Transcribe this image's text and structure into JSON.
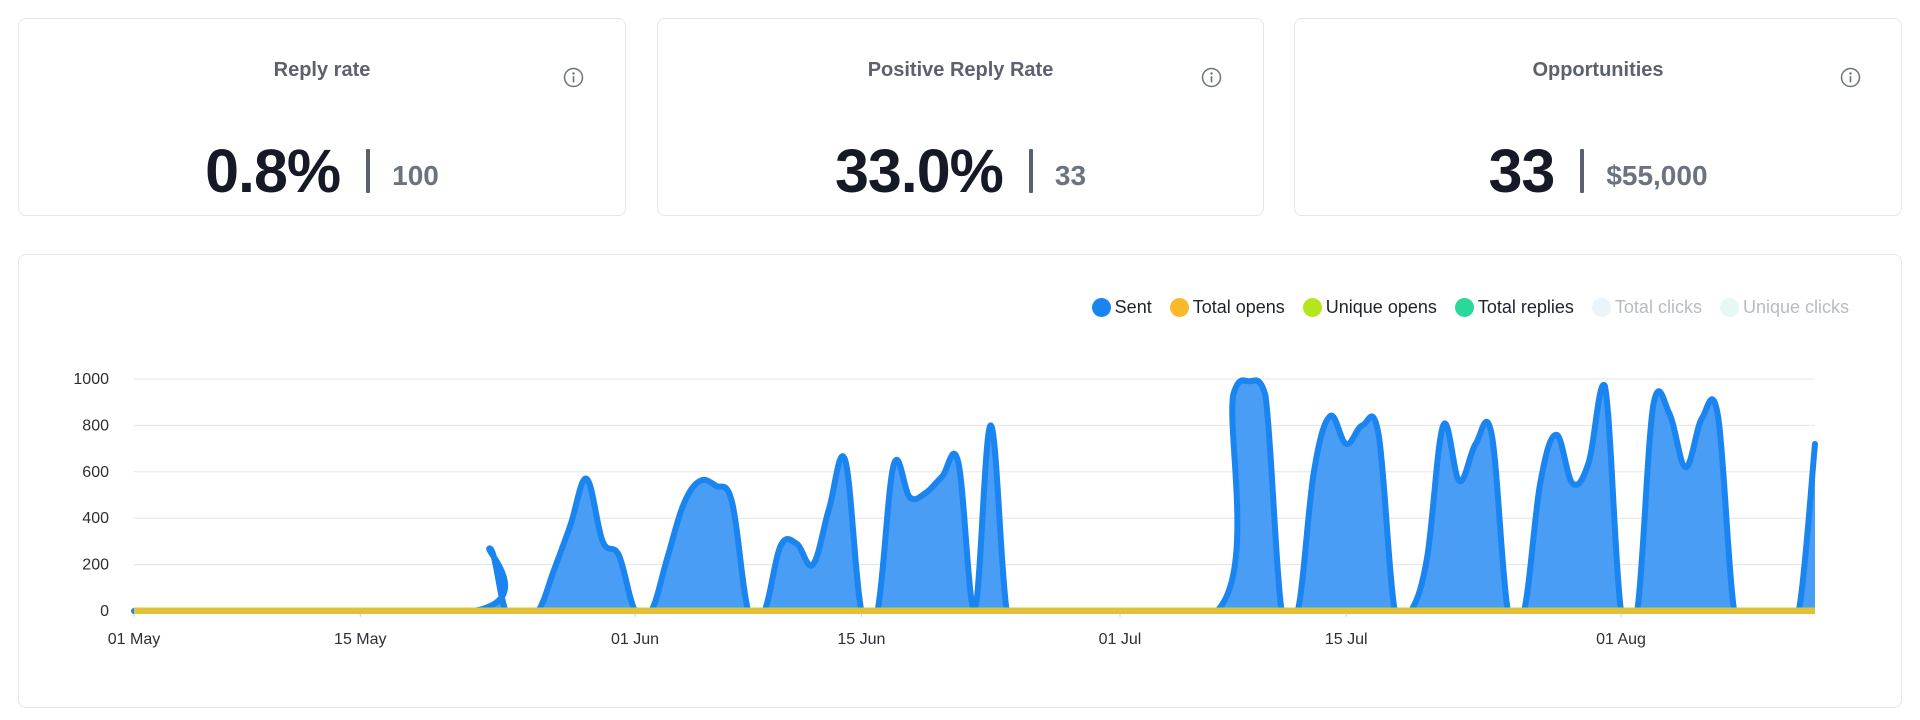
{
  "cards": [
    {
      "title": "Reply rate",
      "value": "0.8%",
      "sub": "100"
    },
    {
      "title": "Positive Reply Rate",
      "value": "33.0%",
      "sub": "33"
    },
    {
      "title": "Opportunities",
      "value": "33",
      "sub": "$55,000"
    }
  ],
  "chart_data": {
    "type": "area",
    "x_type": "date",
    "x_start": "2024-05-01",
    "x_end": "2024-08-13",
    "xlim": [
      "2024-05-01",
      "2024-08-13"
    ],
    "ylim": [
      0,
      1000
    ],
    "y_ticks": [
      "0",
      "200",
      "400",
      "600",
      "800",
      "1000"
    ],
    "x_ticks": [
      {
        "date": "2024-05-01",
        "label": "01 May"
      },
      {
        "date": "2024-05-15",
        "label": "15 May"
      },
      {
        "date": "2024-06-01",
        "label": "01 Jun"
      },
      {
        "date": "2024-06-15",
        "label": "15 Jun"
      },
      {
        "date": "2024-07-01",
        "label": "01 Jul"
      },
      {
        "date": "2024-07-15",
        "label": "15 Jul"
      },
      {
        "date": "2024-08-01",
        "label": "01 Aug"
      }
    ],
    "grid": true,
    "legend_position": "top-right",
    "series": [
      {
        "name": "Sent",
        "color": "#1a85f0",
        "fill": "#4a9df5",
        "visible": true,
        "points": [
          [
            "2024-05-01",
            0
          ],
          [
            "2024-05-22",
            0
          ],
          [
            "2024-05-23",
            270
          ],
          [
            "2024-05-24",
            0
          ],
          [
            "2024-05-25",
            0
          ],
          [
            "2024-05-26",
            0
          ],
          [
            "2024-05-27",
            180
          ],
          [
            "2024-05-28",
            370
          ],
          [
            "2024-05-29",
            570
          ],
          [
            "2024-05-30",
            300
          ],
          [
            "2024-05-31",
            240
          ],
          [
            "2024-06-01",
            0
          ],
          [
            "2024-06-02",
            0
          ],
          [
            "2024-06-03",
            230
          ],
          [
            "2024-06-04",
            460
          ],
          [
            "2024-06-05",
            560
          ],
          [
            "2024-06-06",
            540
          ],
          [
            "2024-06-07",
            470
          ],
          [
            "2024-06-08",
            0
          ],
          [
            "2024-06-09",
            0
          ],
          [
            "2024-06-10",
            280
          ],
          [
            "2024-06-11",
            290
          ],
          [
            "2024-06-12",
            200
          ],
          [
            "2024-06-13",
            440
          ],
          [
            "2024-06-14",
            650
          ],
          [
            "2024-06-15",
            0
          ],
          [
            "2024-06-16",
            0
          ],
          [
            "2024-06-17",
            630
          ],
          [
            "2024-06-18",
            490
          ],
          [
            "2024-06-19",
            510
          ],
          [
            "2024-06-20",
            580
          ],
          [
            "2024-06-21",
            640
          ],
          [
            "2024-06-22",
            0
          ],
          [
            "2024-06-23",
            800
          ],
          [
            "2024-06-24",
            0
          ],
          [
            "2024-06-25",
            0
          ],
          [
            "2024-07-07",
            0
          ],
          [
            "2024-07-08",
            930
          ],
          [
            "2024-07-09",
            990
          ],
          [
            "2024-07-10",
            930
          ],
          [
            "2024-07-11",
            0
          ],
          [
            "2024-07-12",
            0
          ],
          [
            "2024-07-13",
            600
          ],
          [
            "2024-07-14",
            840
          ],
          [
            "2024-07-15",
            720
          ],
          [
            "2024-07-16",
            800
          ],
          [
            "2024-07-17",
            760
          ],
          [
            "2024-07-18",
            0
          ],
          [
            "2024-07-19",
            0
          ],
          [
            "2024-07-20",
            230
          ],
          [
            "2024-07-21",
            800
          ],
          [
            "2024-07-22",
            560
          ],
          [
            "2024-07-23",
            720
          ],
          [
            "2024-07-24",
            760
          ],
          [
            "2024-07-25",
            0
          ],
          [
            "2024-07-26",
            0
          ],
          [
            "2024-07-27",
            550
          ],
          [
            "2024-07-28",
            760
          ],
          [
            "2024-07-29",
            550
          ],
          [
            "2024-07-30",
            640
          ],
          [
            "2024-07-31",
            970
          ],
          [
            "2024-08-01",
            0
          ],
          [
            "2024-08-02",
            0
          ],
          [
            "2024-08-03",
            890
          ],
          [
            "2024-08-04",
            850
          ],
          [
            "2024-08-05",
            620
          ],
          [
            "2024-08-06",
            830
          ],
          [
            "2024-08-07",
            840
          ],
          [
            "2024-08-08",
            0
          ],
          [
            "2024-08-09",
            0
          ],
          [
            "2024-08-10",
            0
          ],
          [
            "2024-08-11",
            0
          ],
          [
            "2024-08-12",
            0
          ],
          [
            "2024-08-13",
            720
          ]
        ]
      },
      {
        "name": "Total opens",
        "color": "#fbb82b",
        "visible": true,
        "values": "zero"
      },
      {
        "name": "Unique opens",
        "color": "#b5e61d",
        "visible": true,
        "values": "zero"
      },
      {
        "name": "Total replies",
        "color": "#2ad89a",
        "visible": true,
        "values": "zero"
      },
      {
        "name": "Total clicks",
        "color": "#eaf4fb",
        "visible": false
      },
      {
        "name": "Unique clicks",
        "color": "#e6f8f5",
        "visible": false
      }
    ]
  }
}
